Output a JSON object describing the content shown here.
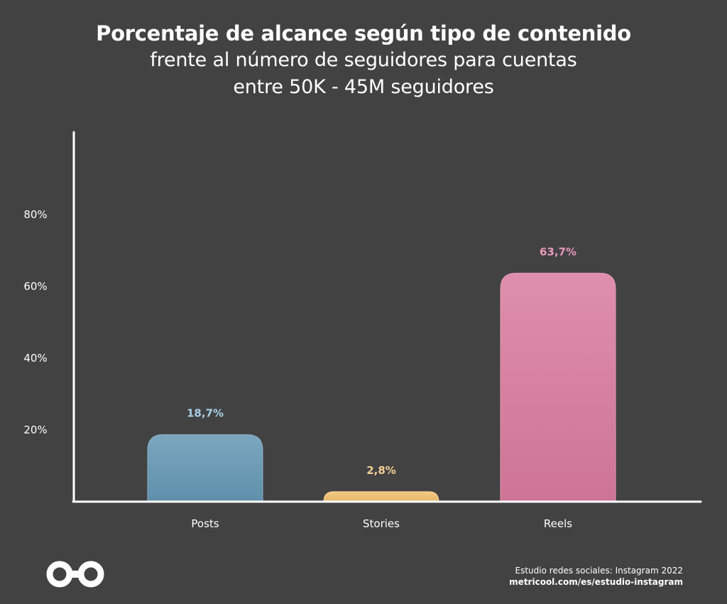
{
  "header": {
    "title": "Porcentaje de alcance según tipo de contenido",
    "subtitle_line1": "frente al número de seguidores para cuentas",
    "subtitle_line2": "entre 50K - 45M seguidores"
  },
  "footer": {
    "source_line1": "Estudio redes sociales: Instagram 2022",
    "source_line2": "metricool.com/es/estudio-instagram",
    "logo_icon": "metricool-infinity-logo-icon"
  },
  "chart_data": {
    "type": "bar",
    "title": "Porcentaje de alcance según tipo de contenido",
    "subtitle": "frente al número de seguidores para cuentas entre 50K - 45M seguidores",
    "categories": [
      "Posts",
      "Stories",
      "Reels"
    ],
    "values": [
      18.7,
      2.8,
      63.7
    ],
    "value_labels": [
      "18,7%",
      "2,8%",
      "63,7%"
    ],
    "bar_colors": [
      "#6497b4",
      "#f2c06e",
      "#d97a9e"
    ],
    "label_colors": [
      "#a9cfe6",
      "#f2cf94",
      "#e89ab8"
    ],
    "xlabel": "",
    "ylabel": "",
    "ylim": [
      0,
      100
    ],
    "yticks": [
      20,
      40,
      60,
      80
    ],
    "ytick_labels": [
      "20%",
      "40%",
      "60%",
      "80%"
    ],
    "grid": false,
    "legend": "none"
  },
  "colors": {
    "background": "#424242",
    "axis": "#ffffff",
    "text": "#ffffff"
  }
}
